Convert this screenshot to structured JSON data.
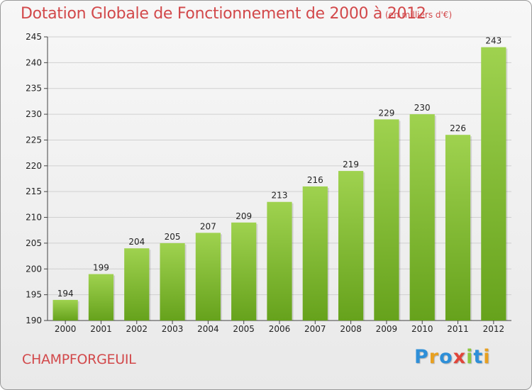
{
  "title": "Dotation Globale de Fonctionnement de 2000 à 2012",
  "subtitle": "(en milliers d'€)",
  "commune": "CHAMPFORGEUIL",
  "logo": {
    "letters": [
      "P",
      "r",
      "o",
      "x",
      "i",
      "t",
      "i"
    ],
    "colors": [
      "#2e8fd8",
      "#e8a020",
      "#2e8fd8",
      "#e0453a",
      "#8dc63f",
      "#2e8fd8",
      "#e8a020"
    ]
  },
  "colors": {
    "bar_top": "#9fd24f",
    "bar_bottom": "#66a21c",
    "accent": "#d2484a"
  },
  "chart_data": {
    "type": "bar",
    "categories": [
      "2000",
      "2001",
      "2002",
      "2003",
      "2004",
      "2005",
      "2006",
      "2007",
      "2008",
      "2009",
      "2010",
      "2011",
      "2012"
    ],
    "values": [
      194,
      199,
      204,
      205,
      207,
      209,
      213,
      216,
      219,
      229,
      230,
      226,
      243
    ],
    "ylim": [
      190,
      245
    ],
    "yticks": [
      190,
      195,
      200,
      205,
      210,
      215,
      220,
      225,
      230,
      235,
      240,
      245
    ],
    "grid": true
  }
}
